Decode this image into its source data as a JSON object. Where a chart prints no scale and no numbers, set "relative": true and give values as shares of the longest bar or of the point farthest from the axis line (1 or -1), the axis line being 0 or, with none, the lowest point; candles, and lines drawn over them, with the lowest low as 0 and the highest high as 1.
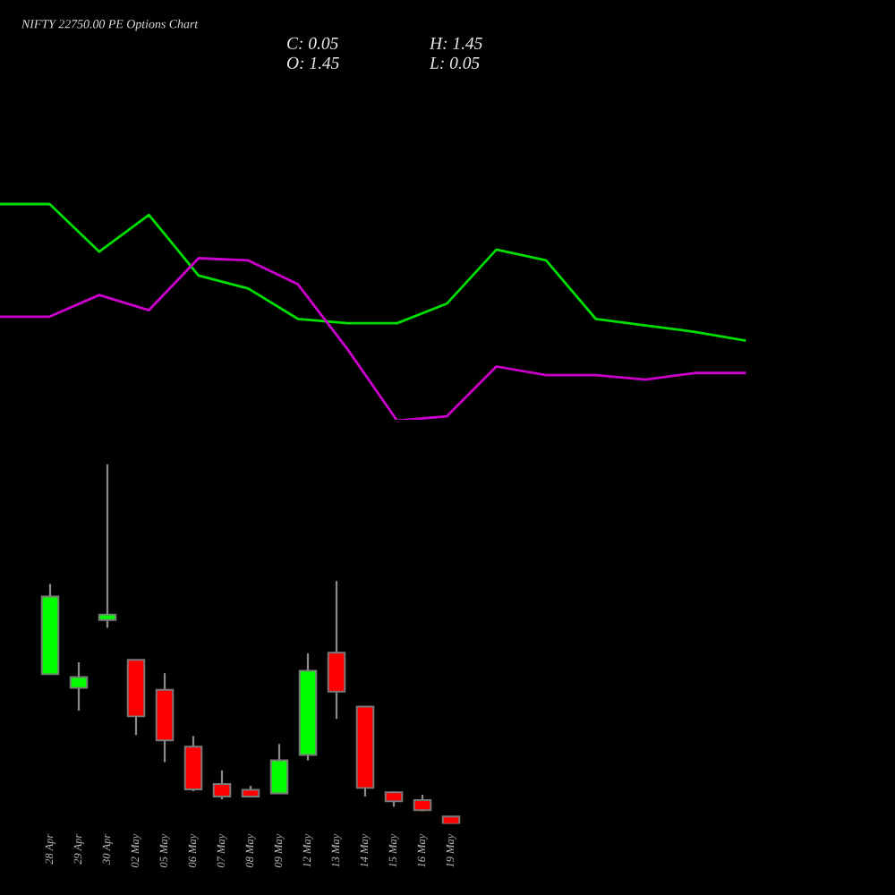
{
  "chart_data": [
    {
      "type": "line",
      "title": "NIFTY 22750.00 PE Options Chart",
      "relative": true,
      "tick_labels": false,
      "categories": [
        null,
        null,
        null,
        null,
        null,
        null,
        null,
        null,
        null,
        null,
        null,
        null,
        null,
        null,
        null,
        null
      ],
      "series": [
        {
          "color": "#00dd00",
          "values": [
            1.0,
            1.0,
            0.78,
            0.95,
            0.67,
            0.61,
            0.47,
            0.45,
            0.45,
            0.54,
            0.79,
            0.74,
            0.47,
            0.44,
            0.41,
            0.37
          ]
        },
        {
          "color": "#cc00cc",
          "values": [
            0.48,
            0.48,
            0.58,
            0.51,
            0.75,
            0.74,
            0.63,
            0.33,
            0.0,
            0.02,
            0.25,
            0.21,
            0.21,
            0.19,
            0.22,
            0.22
          ]
        }
      ]
    },
    {
      "type": "candlestick",
      "relative": true,
      "tick_labels": "x",
      "categories": [
        "28 Apr",
        "29 Apr",
        "30 Apr",
        "02 May",
        "05 May",
        "06 May",
        "07 May",
        "08 May",
        "09 May",
        "12 May",
        "13 May",
        "14 May",
        "15 May",
        "16 May",
        "19 May"
      ],
      "ohlc": [
        [
          0.416,
          0.667,
          0.416,
          0.632
        ],
        [
          0.378,
          0.449,
          0.315,
          0.408
        ],
        [
          0.567,
          1.0,
          0.545,
          0.582
        ],
        [
          0.456,
          0.456,
          0.247,
          0.299
        ],
        [
          0.373,
          0.419,
          0.172,
          0.232
        ],
        [
          0.215,
          0.244,
          0.091,
          0.096
        ],
        [
          0.111,
          0.149,
          0.068,
          0.076
        ],
        [
          0.095,
          0.106,
          0.073,
          0.076
        ],
        [
          0.085,
          0.222,
          0.085,
          0.177
        ],
        [
          0.192,
          0.474,
          0.177,
          0.426
        ],
        [
          0.476,
          0.675,
          0.292,
          0.368
        ],
        [
          0.326,
          0.326,
          0.076,
          0.1
        ],
        [
          0.088,
          0.091,
          0.048,
          0.063
        ],
        [
          0.066,
          0.081,
          0.035,
          0.038
        ],
        [
          0.021,
          0.021,
          0.0,
          0.0
        ]
      ],
      "colors": [
        "#00ff00",
        "#00ff00",
        "#00ff00",
        "#ff0000",
        "#ff0000",
        "#ff0000",
        "#ff0000",
        "#ff0000",
        "#00ff00",
        "#00ff00",
        "#ff0000",
        "#ff0000",
        "#ff0000",
        "#ff0000",
        "#ff0000"
      ],
      "annotations": [
        "C: 0.05",
        "H: 1.45",
        "O: 1.45",
        "L: 0.05"
      ]
    }
  ]
}
